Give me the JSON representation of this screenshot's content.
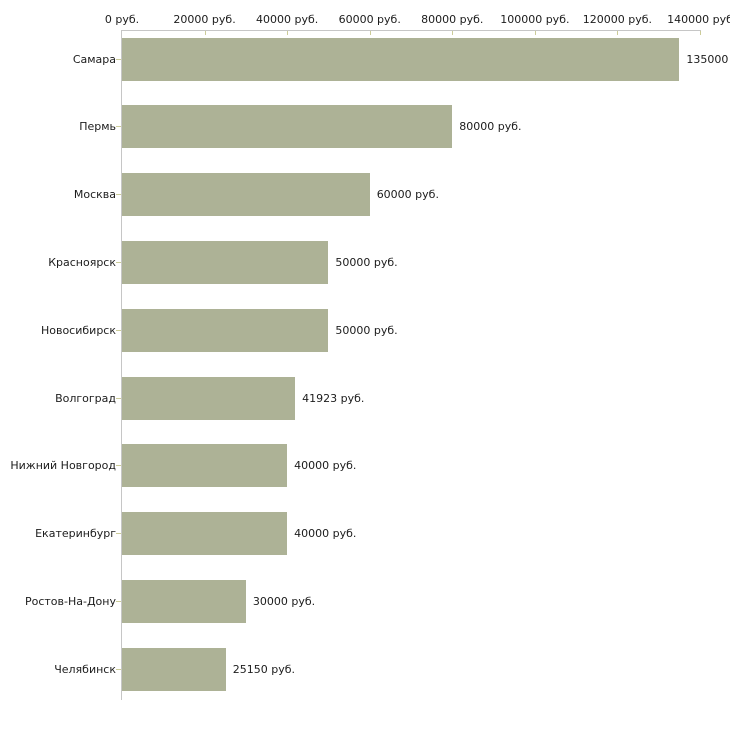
{
  "chart_data": {
    "type": "bar",
    "orientation": "horizontal",
    "title": "",
    "xlabel": "",
    "ylabel": "",
    "unit": "руб.",
    "grid": false,
    "legend": false,
    "categories": [
      "Самара",
      "Пермь",
      "Москва",
      "Красноярск",
      "Новосибирск",
      "Волгоград",
      "Нижний Новгород",
      "Екатеринбург",
      "Ростов-На-Дону",
      "Челябинск"
    ],
    "values": [
      135000,
      80000,
      60000,
      50000,
      50000,
      41923,
      40000,
      40000,
      30000,
      25150
    ],
    "value_labels": [
      "135000",
      "80000 руб.",
      "60000 руб.",
      "50000 руб.",
      "50000 руб.",
      "41923 руб.",
      "40000 руб.",
      "40000 руб.",
      "30000 руб.",
      "25150 руб."
    ],
    "x_axis": {
      "position": "top",
      "min": 0,
      "max": 140000,
      "tick_step": 20000,
      "tick_labels": [
        "0 руб.",
        "20000 руб.",
        "40000 руб.",
        "60000 руб.",
        "80000 руб.",
        "100000 руб.",
        "120000 руб.",
        "140000 руб"
      ]
    },
    "colors": {
      "bar": "#adb296",
      "axis_line": "#c6c6c6",
      "tick_mark": "#cccc99",
      "text": "#1c1c1c",
      "background": "#ffffff"
    }
  }
}
